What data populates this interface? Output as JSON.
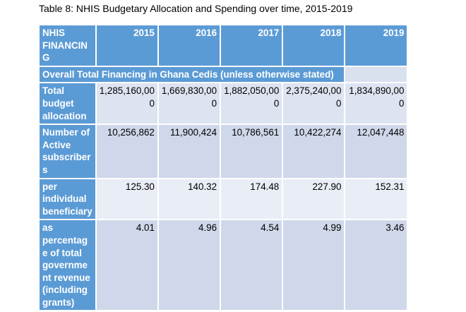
{
  "caption": "Table 8: NHIS Budgetary Allocation and Spending over time, 2015-2019",
  "table": {
    "header": {
      "label": "NHIS FINANCIN G",
      "years": [
        "2015",
        "2016",
        "2017",
        "2018",
        "2019"
      ]
    },
    "section_title": "Overall Total Financing in Ghana Cedis (unless otherwise stated)",
    "rows": [
      {
        "label": "Total budget allocation",
        "values": [
          "1,285,160,00 0",
          "1,669,830,00 0",
          "1,882,050,00 0",
          "2,375,240,00 0",
          "1,834,890,00 0"
        ]
      },
      {
        "label": "Number of Active subscriber s",
        "values": [
          "10,256,862",
          "11,900,424",
          "10,786,561",
          "10,422,274",
          "12,047,448"
        ]
      },
      {
        "label": "per individual beneficiary",
        "values": [
          "125.30",
          "140.32",
          "174.48",
          "227.90",
          "152.31"
        ]
      },
      {
        "label": "as percentag e of total governme nt revenue (including grants)",
        "values": [
          "4.01",
          "4.96",
          "4.54",
          "4.99",
          "3.46"
        ]
      }
    ]
  }
}
